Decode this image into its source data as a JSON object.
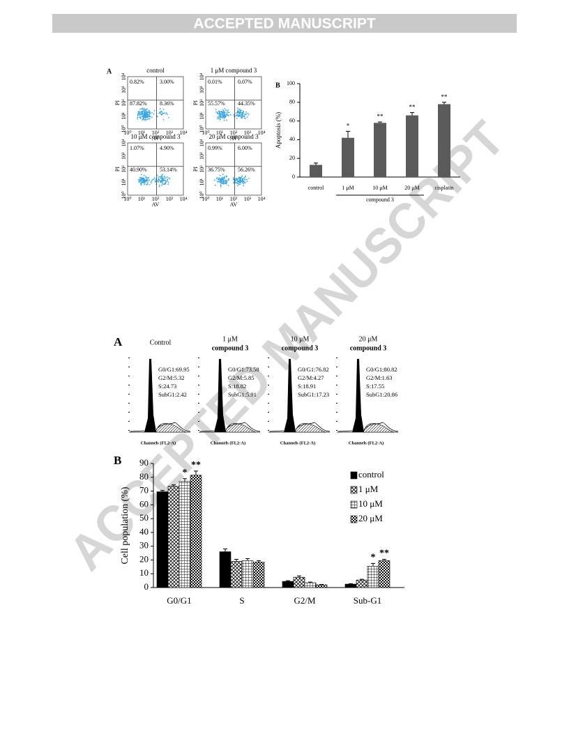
{
  "header": {
    "title": "ACCEPTED MANUSCRIPT"
  },
  "watermark": "ACCEPTED MANUSCRIPT",
  "figure1": {
    "panel_a": {
      "label": "A",
      "x_label": "AV",
      "y_label": "PI",
      "axis_ticks": [
        "10⁰",
        "10¹",
        "10²",
        "10³",
        "10⁴"
      ],
      "plots": [
        {
          "title": "control",
          "quadrants": {
            "upper_left": "0.82%",
            "upper_right": "3.00%",
            "lower_left": "87.82%",
            "lower_right": "8.36%"
          }
        },
        {
          "title": "1 μM compound 3",
          "quadrants": {
            "upper_left": "0.01%",
            "upper_right": "0.07%",
            "lower_left": "55.57%",
            "lower_right": "44.35%"
          }
        },
        {
          "title": "10 μM compound 3",
          "quadrants": {
            "upper_left": "1.07%",
            "upper_right": "4.90%",
            "lower_left": "40.90%",
            "lower_right": "53.14%"
          }
        },
        {
          "title": "20 μM compound 3",
          "quadrants": {
            "upper_left": "0.99%",
            "upper_right": "6.00%",
            "lower_left": "36.75%",
            "lower_right": "56.26%"
          }
        }
      ]
    }
  },
  "figure2": {
    "panel_a": {
      "label": "A",
      "x_label": "Channels (FL2-A)",
      "plots": [
        {
          "title": [
            "Control"
          ],
          "stats": [
            "G0/G1:69.95",
            "G2/M:5.32",
            "S:24.73",
            "SubG1:2.42"
          ]
        },
        {
          "title": [
            "1 μM",
            "compound 3"
          ],
          "stats": [
            "G0/G1:73.58",
            "G2/M:5.85",
            "S:18.82",
            "SubG1:5.91"
          ]
        },
        {
          "title": [
            "10 μM",
            "compound 3"
          ],
          "stats": [
            "G0/G1:76.82",
            "G2/M:4.27",
            "S:18.91",
            "SubG1:17.23"
          ]
        },
        {
          "title": [
            "20 μM",
            "compound 3"
          ],
          "stats": [
            "G0/G1:80.82",
            "G2/M:1.63",
            "S:17.55",
            "SubG1:20.86"
          ]
        }
      ]
    }
  },
  "chart_data": [
    {
      "type": "bar",
      "panel_label": "B",
      "y_label": "Apoptosis (%)",
      "categories": [
        "control",
        "1 μM",
        "10 μM",
        "20 μM",
        "cisplatin"
      ],
      "values": [
        13,
        42,
        58,
        66,
        78
      ],
      "errors": [
        2,
        7,
        1,
        3,
        2
      ],
      "significance": [
        null,
        "*",
        "**",
        "**",
        "**"
      ],
      "group_label": "compound 3",
      "color": "#5a5a5a",
      "ylim": [
        0,
        100
      ],
      "yticks": [
        0,
        20,
        40,
        60,
        80,
        100
      ]
    },
    {
      "type": "grouped_bar",
      "panel_label": "B",
      "y_label": "Cell population (%)",
      "categories": [
        "G0/G1",
        "S",
        "G2/M",
        "Sub-G1"
      ],
      "series": [
        {
          "name": "control",
          "color": "#000000",
          "pattern": "solid",
          "values": [
            69.5,
            26,
            4.5,
            2.5
          ],
          "errors": [
            1,
            2,
            0.5,
            0.3
          ],
          "significance": [
            null,
            null,
            null,
            null
          ]
        },
        {
          "name": "1 μM",
          "color": "#000000",
          "pattern": "diagonal-cross",
          "values": [
            73.5,
            19,
            7.5,
            5.5
          ],
          "errors": [
            1,
            1.5,
            1,
            0.5
          ],
          "significance": [
            null,
            null,
            null,
            null
          ]
        },
        {
          "name": "10 μM",
          "color": "#000000",
          "pattern": "grid",
          "values": [
            77,
            19.5,
            3.5,
            15.5
          ],
          "errors": [
            2,
            1.5,
            0.5,
            2
          ],
          "significance": [
            "*",
            null,
            null,
            "*"
          ]
        },
        {
          "name": "20 μM",
          "color": "#000000",
          "pattern": "checker",
          "values": [
            81.5,
            18.5,
            2,
            19.5
          ],
          "errors": [
            3,
            1,
            0.3,
            1
          ],
          "significance": [
            "**",
            null,
            null,
            "**"
          ]
        }
      ],
      "ylim": [
        0,
        90
      ],
      "yticks": [
        0,
        10,
        20,
        30,
        40,
        50,
        60,
        70,
        80,
        90
      ]
    }
  ]
}
